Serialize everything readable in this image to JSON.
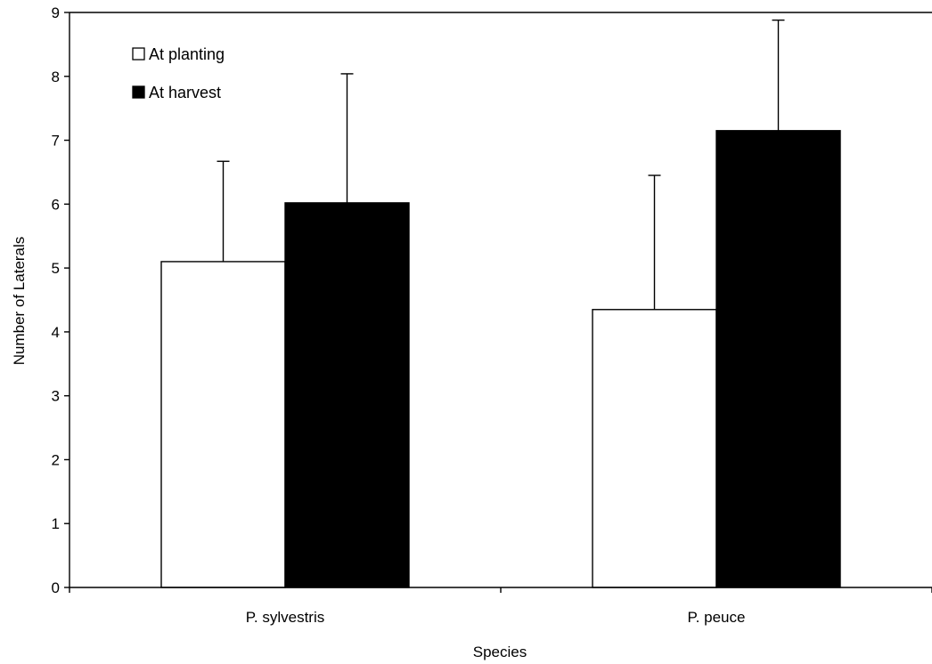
{
  "chart_data": {
    "type": "bar",
    "xlabel": "Species",
    "ylabel": "Number of Laterals",
    "ylim": [
      0,
      9
    ],
    "yticks": [
      0,
      1,
      2,
      3,
      4,
      5,
      6,
      7,
      8,
      9
    ],
    "categories": [
      "P. sylvestris",
      "P. peuce"
    ],
    "series": [
      {
        "name": "At planting",
        "values": [
          5.1,
          4.35
        ],
        "errors": [
          1.57,
          2.1
        ],
        "fill": "#ffffff",
        "stroke": "#000000"
      },
      {
        "name": "At harvest",
        "values": [
          6.02,
          7.15
        ],
        "errors": [
          2.02,
          1.73
        ],
        "fill": "#000000",
        "stroke": "#000000"
      }
    ],
    "legend": {
      "position": "top-left"
    },
    "grid": false
  }
}
